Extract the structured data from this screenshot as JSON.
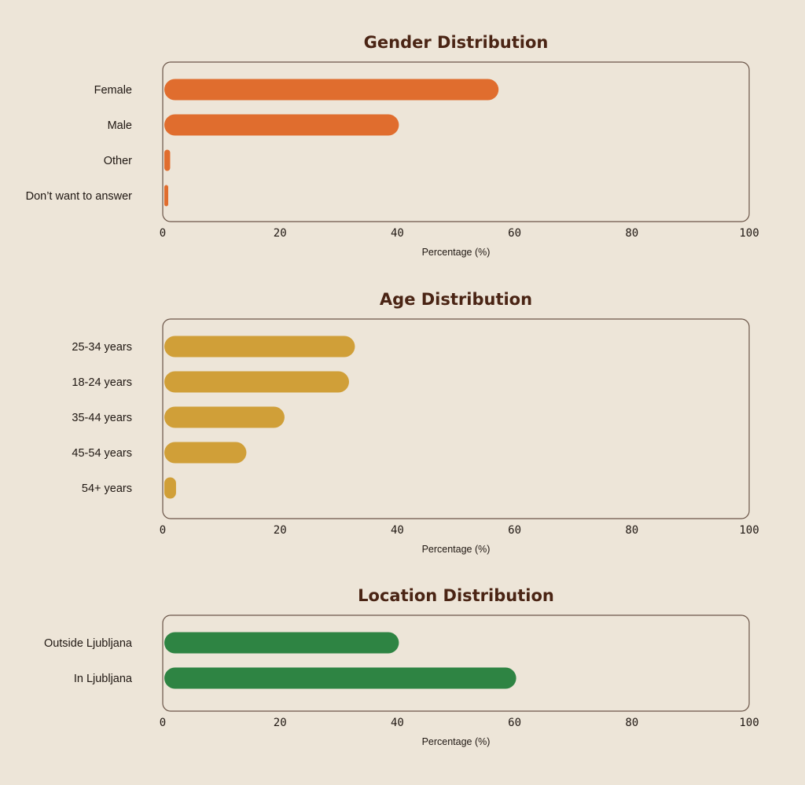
{
  "colors": {
    "background": "#ede5d8",
    "title": "#4a2414",
    "gender": "#e06d2e",
    "age": "#d09f38",
    "location": "#2e8443"
  },
  "chart_data": [
    {
      "type": "bar",
      "orientation": "horizontal",
      "title": "Gender Distribution",
      "xlabel": "Percentage (%)",
      "ylabel": "",
      "xlim": [
        0,
        100
      ],
      "xticks": [
        "0",
        "20",
        "40",
        "60",
        "80",
        "100"
      ],
      "categories": [
        "Female",
        "Male",
        "Other",
        "Don’t want to answer"
      ],
      "values": [
        57,
        40,
        1,
        0.5
      ],
      "color": "#e06d2e",
      "grid": false
    },
    {
      "type": "bar",
      "orientation": "horizontal",
      "title": "Age Distribution",
      "xlabel": "Percentage (%)",
      "ylabel": "",
      "xlim": [
        0,
        100
      ],
      "xticks": [
        "0",
        "20",
        "40",
        "60",
        "80",
        "100"
      ],
      "categories": [
        "25-34 years",
        "18-24 years",
        "35-44 years",
        "45-54 years",
        "54+ years"
      ],
      "values": [
        32.5,
        31.5,
        20.5,
        14,
        2
      ],
      "color": "#d09f38",
      "grid": false
    },
    {
      "type": "bar",
      "orientation": "horizontal",
      "title": "Location Distribution",
      "xlabel": "Percentage (%)",
      "ylabel": "",
      "xlim": [
        0,
        100
      ],
      "xticks": [
        "0",
        "20",
        "40",
        "60",
        "80",
        "100"
      ],
      "categories": [
        "Outside Ljubljana",
        "In Ljubljana"
      ],
      "values": [
        40,
        60
      ],
      "color": "#2e8443",
      "grid": false
    }
  ]
}
